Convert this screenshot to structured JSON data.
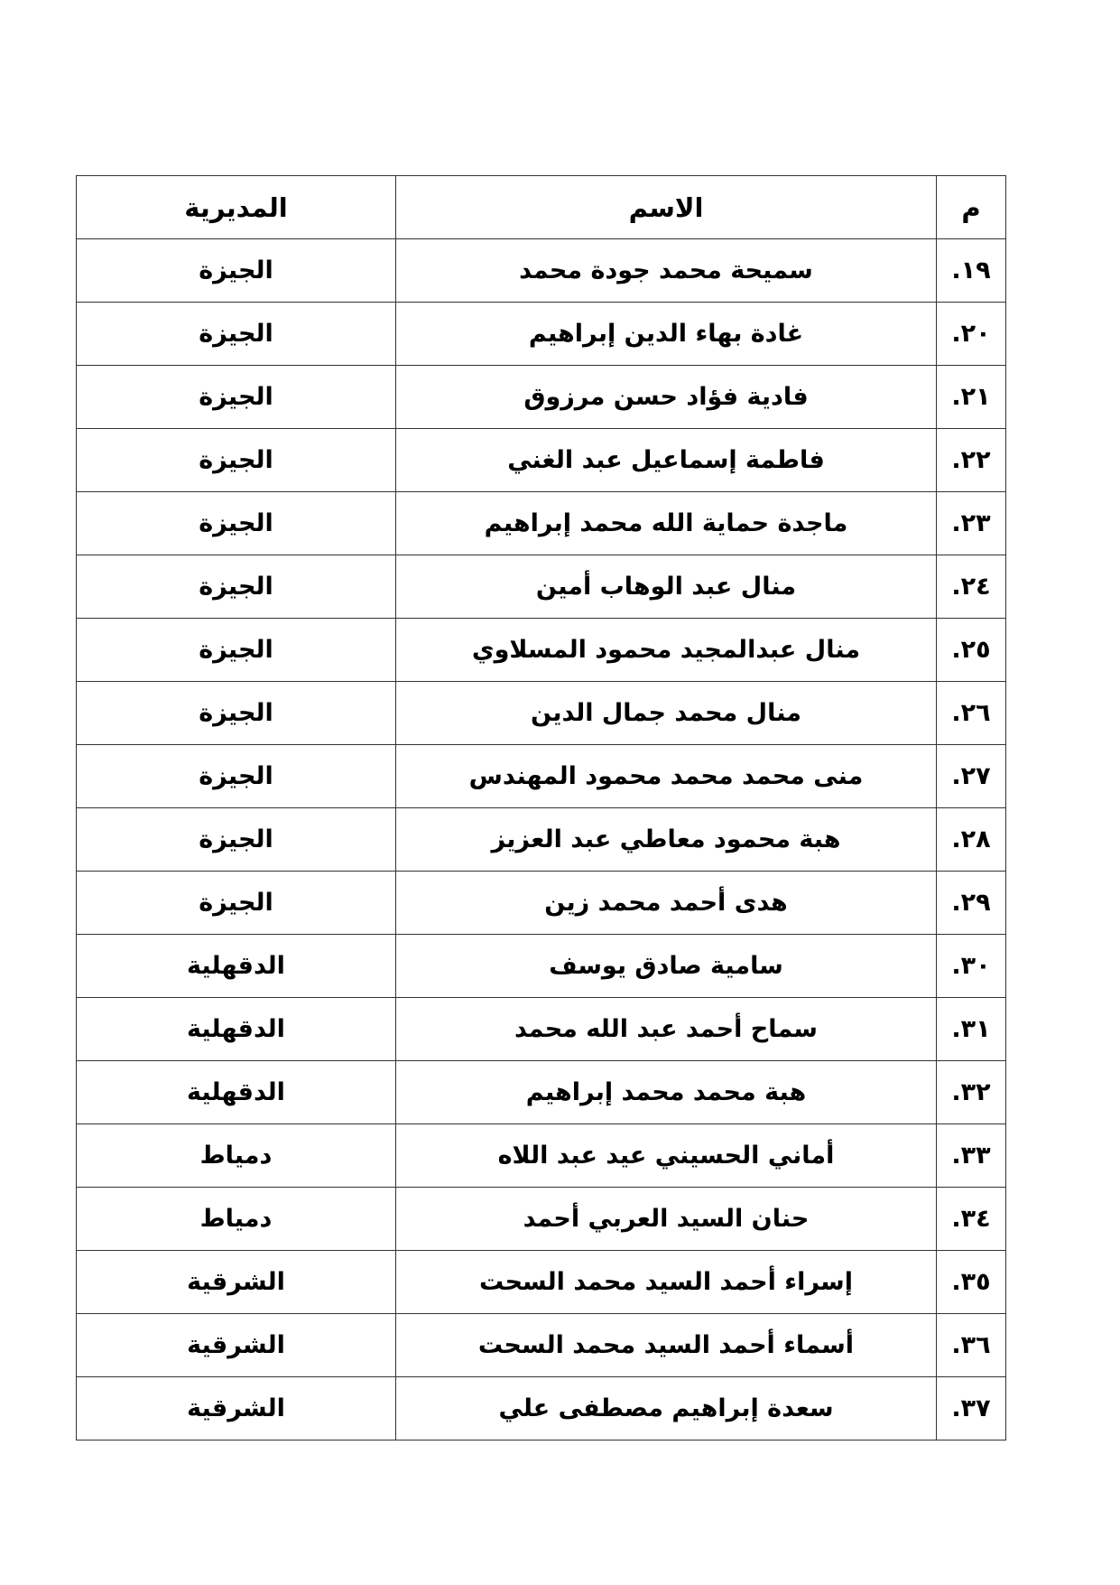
{
  "table": {
    "headers": {
      "num": "م",
      "name": "الاسم",
      "directorate": "المديرية"
    },
    "rows": [
      {
        "num": "١٩.",
        "name": "سميحة محمد جودة محمد",
        "directorate": "الجيزة"
      },
      {
        "num": "٢٠.",
        "name": "غادة بهاء الدين إبراهيم",
        "directorate": "الجيزة"
      },
      {
        "num": "٢١.",
        "name": "فادية فؤاد حسن مرزوق",
        "directorate": "الجيزة"
      },
      {
        "num": "٢٢.",
        "name": "فاطمة إسماعيل عبد الغني",
        "directorate": "الجيزة"
      },
      {
        "num": "٢٣.",
        "name": "ماجدة حماية الله محمد إبراهيم",
        "directorate": "الجيزة"
      },
      {
        "num": "٢٤.",
        "name": "منال عبد الوهاب أمين",
        "directorate": "الجيزة"
      },
      {
        "num": "٢٥.",
        "name": "منال عبدالمجيد محمود المسلاوي",
        "directorate": "الجيزة"
      },
      {
        "num": "٢٦.",
        "name": "منال محمد جمال الدين",
        "directorate": "الجيزة"
      },
      {
        "num": "٢٧.",
        "name": "منى محمد محمد محمود المهندس",
        "directorate": "الجيزة"
      },
      {
        "num": "٢٨.",
        "name": "هبة محمود معاطي عبد العزيز",
        "directorate": "الجيزة"
      },
      {
        "num": "٢٩.",
        "name": "هدى أحمد محمد زين",
        "directorate": "الجيزة"
      },
      {
        "num": "٣٠.",
        "name": "سامية صادق يوسف",
        "directorate": "الدقهلية"
      },
      {
        "num": "٣١.",
        "name": "سماح أحمد عبد الله محمد",
        "directorate": "الدقهلية"
      },
      {
        "num": "٣٢.",
        "name": "هبة محمد محمد إبراهيم",
        "directorate": "الدقهلية"
      },
      {
        "num": "٣٣.",
        "name": "أماني الحسيني عيد عبد اللاه",
        "directorate": "دمياط"
      },
      {
        "num": "٣٤.",
        "name": "حنان السيد العربي أحمد",
        "directorate": "دمياط"
      },
      {
        "num": "٣٥.",
        "name": "إسراء أحمد السيد محمد السحت",
        "directorate": "الشرقية"
      },
      {
        "num": "٣٦.",
        "name": "أسماء أحمد السيد محمد السحت",
        "directorate": "الشرقية"
      },
      {
        "num": "٣٧.",
        "name": "سعدة إبراهيم مصطفى علي",
        "directorate": "الشرقية"
      }
    ]
  }
}
